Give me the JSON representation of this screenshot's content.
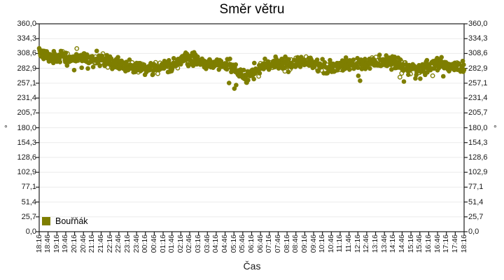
{
  "title": "Směr větru",
  "x_axis_label": "Čas",
  "y_axis_unit_left": "°",
  "y_axis_unit_right": "°",
  "legend": {
    "series_label": "Bouřňák"
  },
  "colors": {
    "series": "#7E7E00",
    "grid": "#EBEBEB",
    "axis": "#1F1F1F",
    "background": "#FFFFFF",
    "text": "#1A1A1A"
  },
  "chart_data": {
    "type": "scatter",
    "title": "Směr větru",
    "xlabel": "Čas",
    "ylabel": "°",
    "grid": "horizontal",
    "legend_position": "bottom-left-inside",
    "ylim": [
      0,
      360
    ],
    "y_tick_labels": [
      "360,0",
      "334,3",
      "308,6",
      "282,9",
      "257,1",
      "231,4",
      "205,7",
      "180,0",
      "154,3",
      "128,6",
      "102,9",
      "77,1",
      "51,4",
      "25,7",
      "0,0"
    ],
    "x_tick_labels": [
      "18:16",
      "18:46",
      "19:16",
      "19:46",
      "20:16",
      "20:46",
      "21:16",
      "21:46",
      "22:16",
      "22:46",
      "23:16",
      "23:46",
      "00:16",
      "00:46",
      "01:16",
      "01:46",
      "02:16",
      "02:46",
      "03:16",
      "03:46",
      "04:16",
      "04:46",
      "05:16",
      "05:46",
      "06:16",
      "06:46",
      "07:16",
      "07:46",
      "08:16",
      "08:46",
      "09:16",
      "09:46",
      "10:16",
      "10:46",
      "11:16",
      "11:46",
      "12:16",
      "12:46",
      "13:16",
      "13:46",
      "14:16",
      "14:46",
      "15:16",
      "15:46",
      "16:16",
      "16:46",
      "17:16",
      "17:46",
      "18:16"
    ],
    "x_range_minutes": 1440,
    "sample_interval_minutes": 1.5,
    "series": [
      {
        "name": "Bouřňák",
        "color": "#7E7E00",
        "trend_points": [
          [
            0,
            312
          ],
          [
            25,
            307
          ],
          [
            50,
            301
          ],
          [
            80,
            304
          ],
          [
            110,
            299
          ],
          [
            140,
            302
          ],
          [
            170,
            297
          ],
          [
            200,
            299
          ],
          [
            230,
            294
          ],
          [
            260,
            290
          ],
          [
            290,
            288
          ],
          [
            320,
            286
          ],
          [
            350,
            284
          ],
          [
            380,
            283
          ],
          [
            410,
            284
          ],
          [
            440,
            288
          ],
          [
            470,
            293
          ],
          [
            495,
            300
          ],
          [
            515,
            302
          ],
          [
            535,
            297
          ],
          [
            560,
            292
          ],
          [
            590,
            291
          ],
          [
            620,
            292
          ],
          [
            645,
            287
          ],
          [
            665,
            280
          ],
          [
            685,
            271
          ],
          [
            705,
            267
          ],
          [
            720,
            273
          ],
          [
            740,
            281
          ],
          [
            760,
            287
          ],
          [
            790,
            291
          ],
          [
            820,
            290
          ],
          [
            850,
            290
          ],
          [
            880,
            293
          ],
          [
            910,
            293
          ],
          [
            940,
            290
          ],
          [
            965,
            286
          ],
          [
            990,
            284
          ],
          [
            1015,
            288
          ],
          [
            1045,
            290
          ],
          [
            1075,
            289
          ],
          [
            1105,
            291
          ],
          [
            1135,
            293
          ],
          [
            1165,
            294
          ],
          [
            1195,
            292
          ],
          [
            1225,
            287
          ],
          [
            1255,
            282
          ],
          [
            1285,
            281
          ],
          [
            1315,
            287
          ],
          [
            1345,
            290
          ],
          [
            1375,
            289
          ],
          [
            1405,
            286
          ],
          [
            1440,
            284
          ]
        ],
        "noise_sigma": 5.5,
        "outlier_probability": 0.02,
        "outlier_max_drop": 22,
        "outlier_extra_windows": [
          {
            "from": 660,
            "to": 730,
            "probability": 0.1,
            "max_drop": 34
          },
          {
            "from": 1215,
            "to": 1265,
            "probability": 0.06,
            "max_drop": 32
          }
        ],
        "value_min_clamp": 232,
        "value_max_clamp": 324,
        "open_marker_fraction": 0.18,
        "seed": 42
      }
    ]
  }
}
